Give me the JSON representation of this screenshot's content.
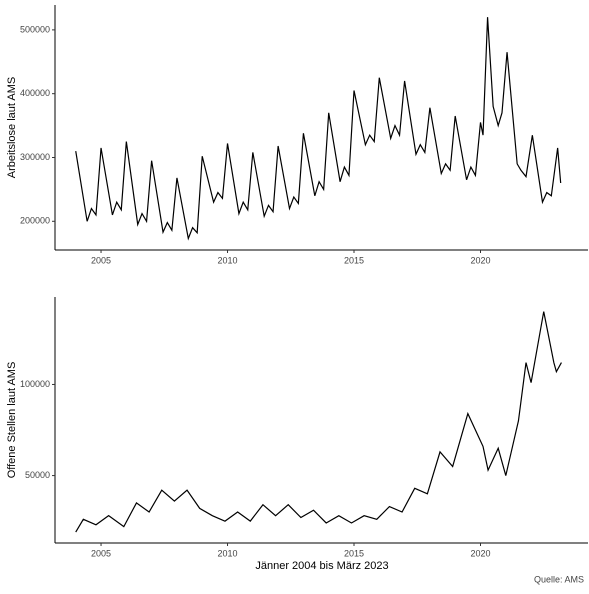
{
  "caption": "Quelle: AMS",
  "chart_data": [
    {
      "type": "line",
      "ylabel": "Arbeitslose laut AMS",
      "color": "#000000",
      "xlim": [
        2003.18,
        2024.25
      ],
      "ylim": [
        155000,
        539000
      ],
      "xticks": [
        2005,
        2010,
        2015,
        2020
      ],
      "yticks": [
        200000,
        300000,
        400000,
        500000
      ],
      "x": [
        2004.0,
        2004.45,
        2004.62,
        2004.8,
        2005.0,
        2005.45,
        2005.62,
        2005.8,
        2006.0,
        2006.45,
        2006.62,
        2006.8,
        2007.0,
        2007.45,
        2007.62,
        2007.8,
        2008.0,
        2008.45,
        2008.62,
        2008.8,
        2009.0,
        2009.45,
        2009.62,
        2009.8,
        2010.0,
        2010.45,
        2010.62,
        2010.8,
        2011.0,
        2011.45,
        2011.62,
        2011.8,
        2012.0,
        2012.45,
        2012.62,
        2012.8,
        2013.0,
        2013.45,
        2013.62,
        2013.8,
        2014.0,
        2014.45,
        2014.62,
        2014.8,
        2015.0,
        2015.45,
        2015.62,
        2015.8,
        2016.0,
        2016.45,
        2016.62,
        2016.8,
        2017.0,
        2017.45,
        2017.62,
        2017.8,
        2018.0,
        2018.45,
        2018.62,
        2018.8,
        2019.0,
        2019.45,
        2019.62,
        2019.8,
        2020.0,
        2020.1,
        2020.28,
        2020.5,
        2020.7,
        2020.85,
        2021.05,
        2021.45,
        2021.6,
        2021.8,
        2022.05,
        2022.45,
        2022.62,
        2022.8,
        2023.05,
        2023.17
      ],
      "values": [
        310000,
        200000,
        220000,
        210000,
        315000,
        210000,
        230000,
        218000,
        325000,
        195000,
        212000,
        200000,
        295000,
        183000,
        198000,
        186000,
        268000,
        173000,
        190000,
        182000,
        302000,
        230000,
        245000,
        236000,
        322000,
        212000,
        230000,
        218000,
        308000,
        208000,
        225000,
        215000,
        318000,
        220000,
        238000,
        228000,
        338000,
        240000,
        262000,
        250000,
        370000,
        262000,
        285000,
        272000,
        405000,
        320000,
        335000,
        325000,
        425000,
        330000,
        350000,
        335000,
        420000,
        305000,
        320000,
        308000,
        378000,
        275000,
        290000,
        280000,
        365000,
        265000,
        285000,
        272000,
        355000,
        335000,
        520000,
        380000,
        350000,
        370000,
        465000,
        290000,
        280000,
        270000,
        335000,
        230000,
        245000,
        240000,
        315000,
        260000
      ]
    },
    {
      "type": "line",
      "ylabel": "Offene Stellen laut AMS",
      "xlabel": "Jänner 2004 bis März 2023",
      "color": "#000000",
      "xlim": [
        2003.18,
        2024.25
      ],
      "ylim": [
        13000,
        148000
      ],
      "xticks": [
        2005,
        2010,
        2015,
        2020
      ],
      "yticks": [
        50000,
        100000
      ],
      "x": [
        2004.0,
        2004.3,
        2004.8,
        2005.3,
        2005.9,
        2006.4,
        2006.9,
        2007.4,
        2007.9,
        2008.4,
        2008.9,
        2009.4,
        2009.9,
        2010.4,
        2010.9,
        2011.4,
        2011.9,
        2012.4,
        2012.9,
        2013.4,
        2013.9,
        2014.4,
        2014.9,
        2015.4,
        2015.9,
        2016.4,
        2016.9,
        2017.4,
        2017.9,
        2018.4,
        2018.9,
        2019.5,
        2019.9,
        2020.1,
        2020.3,
        2020.7,
        2021.0,
        2021.5,
        2021.8,
        2022.0,
        2022.5,
        2022.9,
        2023.0,
        2023.2
      ],
      "values": [
        19000,
        26000,
        23000,
        28000,
        22000,
        35000,
        30000,
        42000,
        36000,
        42000,
        32000,
        28000,
        25000,
        30000,
        25000,
        34000,
        28000,
        34000,
        27000,
        31000,
        24000,
        28000,
        24000,
        28000,
        26000,
        33000,
        30000,
        43000,
        40000,
        63000,
        55000,
        84000,
        72000,
        66000,
        53000,
        65000,
        50000,
        80000,
        112000,
        101000,
        140000,
        112000,
        107000,
        112000
      ]
    }
  ]
}
